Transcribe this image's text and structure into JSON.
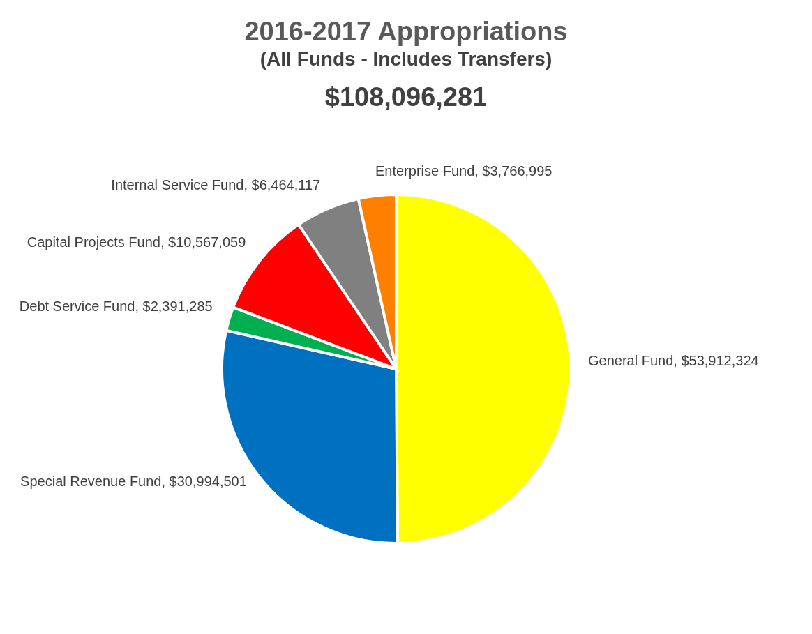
{
  "chart_data": {
    "type": "pie",
    "title": "2016-2017 Appropriations",
    "subtitle": "(All Funds - Includes Transfers)",
    "annotations": [
      "$108,096,281"
    ],
    "categories": [
      "General Fund",
      "Special Revenue Fund",
      "Debt Service Fund",
      "Capital Projects Fund",
      "Internal Service Fund",
      "Enterprise Fund"
    ],
    "values": [
      53912324,
      30994501,
      2391285,
      10567059,
      6464117,
      3766995
    ],
    "value_labels": [
      "$53,912,324",
      "$30,994,501",
      "$2,391,285",
      "$10,567,059",
      "$6,464,117",
      "$3,766,995"
    ],
    "colors": [
      "#ffff00",
      "#0070c0",
      "#00b050",
      "#ff0000",
      "#808080",
      "#ff8000"
    ]
  }
}
